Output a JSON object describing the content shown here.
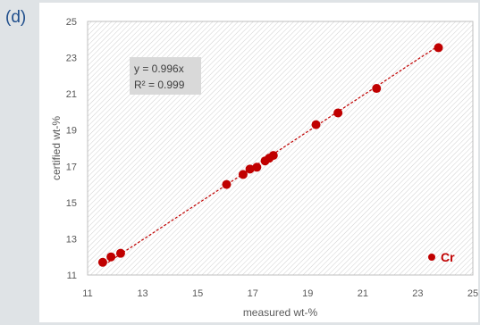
{
  "panel_label": "(d)",
  "colors": {
    "marker": "#c00000",
    "trendline": "#c00000",
    "label_box": "#d9d9d9",
    "panel_label": "#1f4e8c",
    "hatch": "#d0d0d0"
  },
  "chart_data": {
    "type": "scatter",
    "xlabel": "measured wt-%",
    "ylabel": "certified wt-%",
    "xlim": [
      11,
      25
    ],
    "ylim": [
      11,
      25
    ],
    "xticks": [
      11,
      13,
      15,
      17,
      19,
      21,
      23,
      25
    ],
    "yticks": [
      11,
      13,
      15,
      17,
      19,
      21,
      23,
      25
    ],
    "grid": false,
    "background_pattern": "diagonal hatch",
    "legend_position": "bottom-right",
    "series": [
      {
        "name": "Cr",
        "x": [
          11.55,
          11.85,
          12.2,
          16.05,
          16.65,
          16.9,
          17.15,
          17.45,
          17.6,
          17.75,
          19.3,
          20.1,
          21.5,
          23.75
        ],
        "y": [
          11.7,
          12.0,
          12.2,
          16.0,
          16.55,
          16.85,
          16.95,
          17.3,
          17.45,
          17.6,
          19.3,
          19.95,
          21.3,
          23.55
        ]
      }
    ],
    "trendline": {
      "type": "linear",
      "slope": 0.996,
      "x_range": [
        11.6,
        23.75
      ],
      "equation": "y = 0.996x",
      "r_squared": "R² = 0.999"
    }
  }
}
